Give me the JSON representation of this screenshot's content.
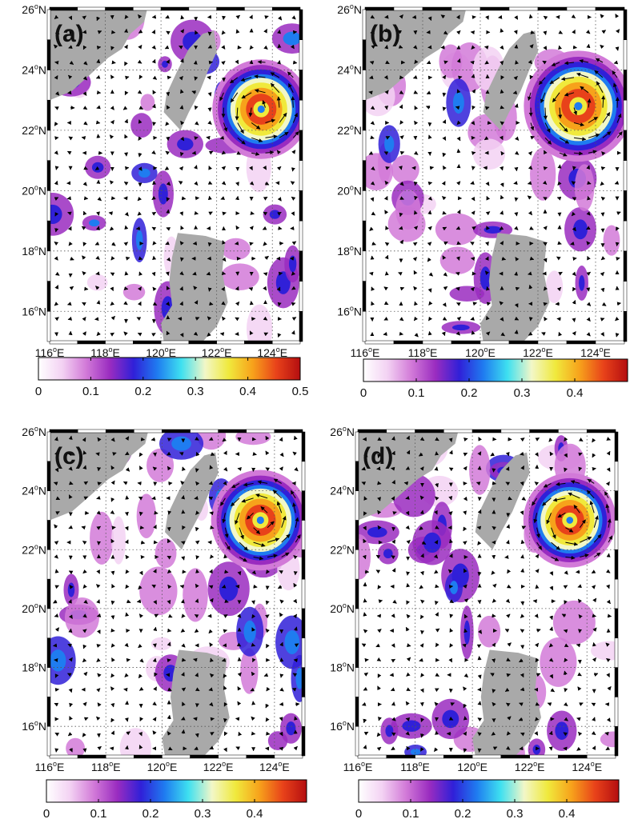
{
  "panels": [
    {
      "label": "(a)",
      "cb_max": 0.5,
      "cb_ticks": [
        "0",
        "0.1",
        "0.2",
        "0.3",
        "0.4",
        "0.5"
      ]
    },
    {
      "label": "(b)",
      "cb_max": 0.5,
      "cb_ticks": [
        "0",
        "0.1",
        "0.2",
        "0.3",
        "0.4"
      ]
    },
    {
      "label": "(c)",
      "cb_max": 0.5,
      "cb_ticks": [
        "0",
        "0.1",
        "0.2",
        "0.3",
        "0.4"
      ]
    },
    {
      "label": "(d)",
      "cb_max": 0.5,
      "cb_ticks": [
        "0",
        "0.1",
        "0.2",
        "0.3",
        "0.4"
      ]
    }
  ],
  "lon_ticks": [
    {
      "value": 116,
      "deg": "116",
      "hemi": "E"
    },
    {
      "value": 118,
      "deg": "118",
      "hemi": "E"
    },
    {
      "value": 120,
      "deg": "120",
      "hemi": "E"
    },
    {
      "value": 122,
      "deg": "122",
      "hemi": "E"
    },
    {
      "value": 124,
      "deg": "124",
      "hemi": "E"
    }
  ],
  "lat_ticks": [
    {
      "value": 16,
      "deg": "16",
      "hemi": "N"
    },
    {
      "value": 18,
      "deg": "18",
      "hemi": "N"
    },
    {
      "value": 20,
      "deg": "20",
      "hemi": "N"
    },
    {
      "value": 22,
      "deg": "22",
      "hemi": "N"
    },
    {
      "value": 24,
      "deg": "24",
      "hemi": "N"
    },
    {
      "value": 26,
      "deg": "26",
      "hemi": "N"
    }
  ],
  "extent": {
    "lon": [
      116,
      125
    ],
    "lat": [
      15,
      26
    ]
  },
  "colormap": [
    "#ffffff",
    "#f3d2f3",
    "#d27ad8",
    "#9a2cc0",
    "#3020d8",
    "#1f7cf0",
    "#3ee0f0",
    "#f2f7c8",
    "#f0e93c",
    "#f7a21b",
    "#e8421a",
    "#b40e10"
  ],
  "land_color": "#a9a9a9",
  "features": [
    {
      "panel": 0,
      "lon": 123.6,
      "lat": 22.7,
      "value": 0.45,
      "radius_deg": 1.3
    },
    {
      "panel": 1,
      "lon": 123.4,
      "lat": 22.8,
      "value": 0.5,
      "radius_deg": 1.4
    },
    {
      "panel": 2,
      "lon": 123.5,
      "lat": 23.0,
      "value": 0.5,
      "radius_deg": 1.3
    },
    {
      "panel": 3,
      "lon": 123.4,
      "lat": 23.0,
      "value": 0.45,
      "radius_deg": 1.2
    }
  ]
}
